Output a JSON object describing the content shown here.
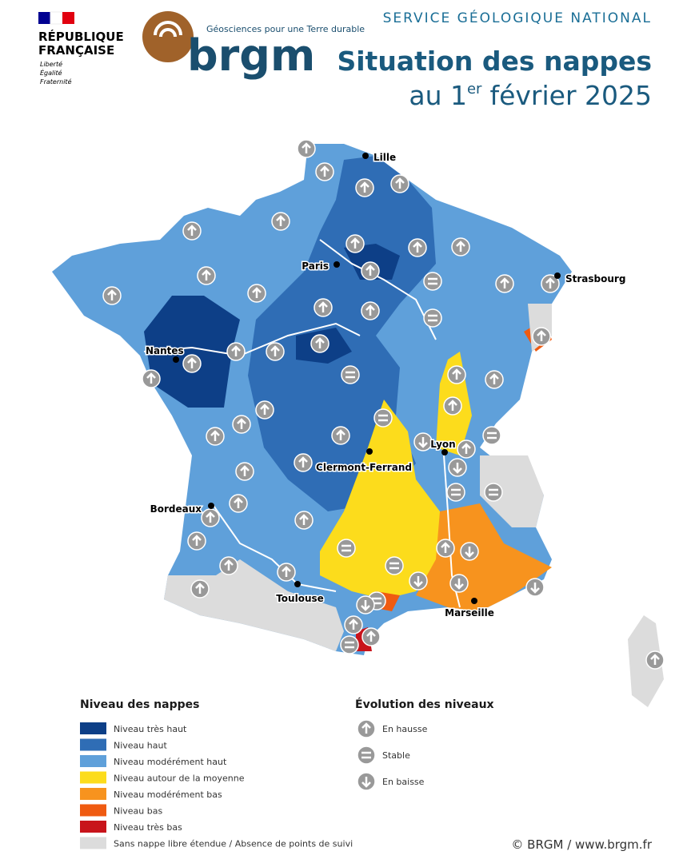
{
  "header": {
    "republic": [
      "RÉPUBLIQUE",
      "FRANÇAISE"
    ],
    "motto": [
      "Liberté",
      "Égalité",
      "Fraternité"
    ],
    "tagline": "Géosciences pour une Terre durable",
    "brand": "brgm",
    "service": "SERVICE GÉOLOGIQUE NATIONAL",
    "title": "Situation des nappes",
    "date": {
      "prefix": "au 1",
      "ordinal": "er",
      "rest": "février 2025"
    }
  },
  "map": {
    "cities": [
      "Lille",
      "Paris",
      "Strasbourg",
      "Nantes",
      "Clermont-Ferrand",
      "Lyon",
      "Bordeaux",
      "Toulouse",
      "Marseille"
    ]
  },
  "legend": {
    "levels": {
      "title": "Niveau des nappes",
      "items": [
        {
          "label": "Niveau très haut",
          "color": "#0d3f87"
        },
        {
          "label": "Niveau haut",
          "color": "#2f6db5"
        },
        {
          "label": "Niveau modérément haut",
          "color": "#5fa0da"
        },
        {
          "label": "Niveau autour de la moyenne",
          "color": "#fcdc1c"
        },
        {
          "label": "Niveau modérément bas",
          "color": "#f7931e"
        },
        {
          "label": "Niveau bas",
          "color": "#ef5b11"
        },
        {
          "label": "Niveau très bas",
          "color": "#c8141b"
        },
        {
          "label": "Sans nappe libre étendue / Absence de points de suivi",
          "color": "#dcdcdc"
        }
      ]
    },
    "trends": {
      "title": "Évolution des niveaux",
      "items": [
        "En hausse",
        "Stable",
        "En baisse"
      ]
    }
  },
  "footer": "© BRGM / www.brgm.fr"
}
